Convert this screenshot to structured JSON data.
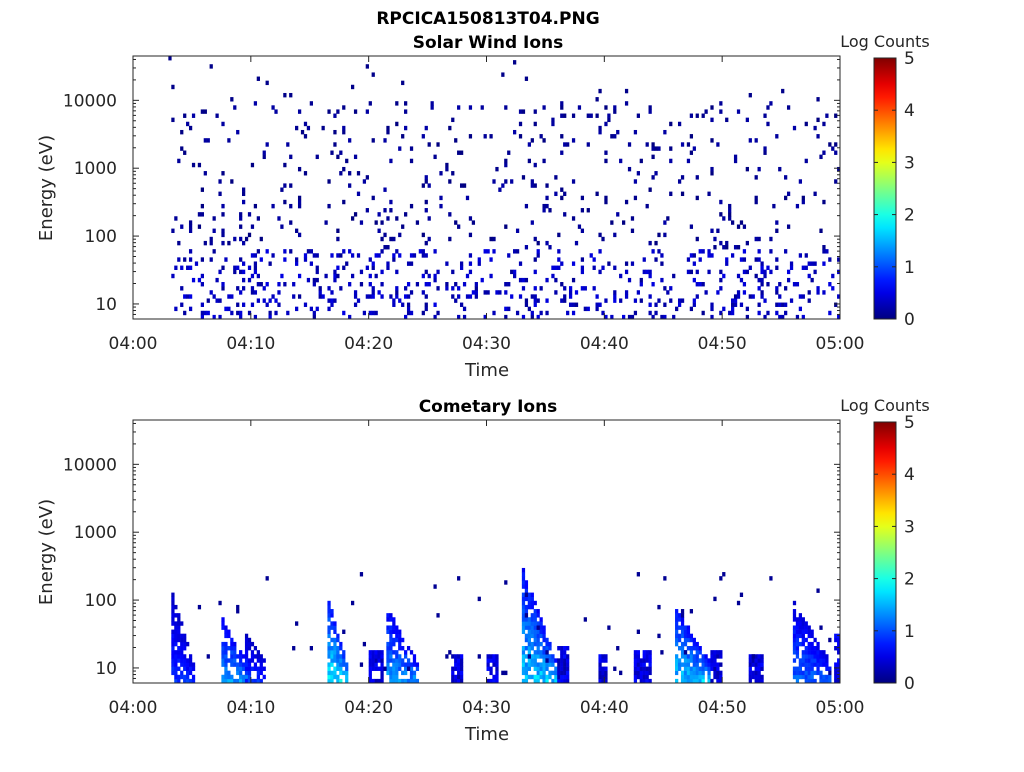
{
  "figure_title": "RPCICA150813T04.PNG",
  "colorbar": {
    "label": "Log Counts",
    "range": [
      0,
      5
    ],
    "ticks": [
      "0",
      "1",
      "2",
      "3",
      "4",
      "5"
    ],
    "colormap": "jet"
  },
  "chart_data": [
    {
      "type": "heatmap",
      "title": "Solar Wind Ions",
      "xlabel": "Time",
      "ylabel": "Energy (eV)",
      "xlim_minutes": [
        0,
        60
      ],
      "x_tick_labels": [
        "04:00",
        "04:10",
        "04:20",
        "04:30",
        "04:40",
        "04:50",
        "05:00"
      ],
      "yscale": "log",
      "ylim": [
        6,
        45000
      ],
      "y_tick_values": [
        10,
        100,
        1000,
        10000
      ],
      "y_tick_labels": [
        "10",
        "100",
        "1000",
        "10000"
      ],
      "data_start_minute": 2.8,
      "typical_log_counts": 0.1,
      "features": [
        {
          "description": "sparse single-count speckle",
          "energy_range_eV": [
            50,
            8000
          ],
          "log_counts": 0.0
        },
        {
          "description": "low-energy columns",
          "energy_range_eV": [
            7,
            35
          ],
          "log_counts": 0.2
        }
      ]
    },
    {
      "type": "heatmap",
      "title": "Cometary Ions",
      "xlabel": "Time",
      "ylabel": "Energy (eV)",
      "xlim_minutes": [
        0,
        60
      ],
      "x_tick_labels": [
        "04:00",
        "04:10",
        "04:20",
        "04:30",
        "04:40",
        "04:50",
        "05:00"
      ],
      "yscale": "log",
      "ylim": [
        6,
        45000
      ],
      "y_tick_values": [
        10,
        100,
        1000,
        10000
      ],
      "y_tick_labels": [
        "10",
        "100",
        "1000",
        "10000"
      ],
      "bursts": [
        {
          "start_min": 3.2,
          "end_min": 5.0,
          "emax": 120,
          "emin": 8,
          "peak": 1.0
        },
        {
          "start_min": 7.3,
          "end_min": 9.5,
          "emax": 60,
          "emin": 8,
          "peak": 1.6
        },
        {
          "start_min": 9.5,
          "end_min": 11.2,
          "emax": 30,
          "emin": 8,
          "peak": 1.0
        },
        {
          "start_min": 16.5,
          "end_min": 18.0,
          "emax": 90,
          "emin": 8,
          "peak": 2.1
        },
        {
          "start_min": 21.5,
          "end_min": 24.0,
          "emax": 70,
          "emin": 8,
          "peak": 1.6
        },
        {
          "start_min": 33.0,
          "end_min": 35.8,
          "emax": 260,
          "emin": 8,
          "peak": 1.9
        },
        {
          "start_min": 46.0,
          "end_min": 48.8,
          "emax": 70,
          "emin": 8,
          "peak": 1.9
        },
        {
          "start_min": 56.0,
          "end_min": 59.0,
          "emax": 90,
          "emin": 8,
          "peak": 1.3
        }
      ],
      "low_energy_columns": [
        {
          "start_min": 20.0,
          "end_min": 21.2,
          "emax": 18
        },
        {
          "start_min": 26.8,
          "end_min": 27.8,
          "emax": 15
        },
        {
          "start_min": 30.0,
          "end_min": 30.8,
          "emax": 14
        },
        {
          "start_min": 36.0,
          "end_min": 36.8,
          "emax": 20
        },
        {
          "start_min": 39.3,
          "end_min": 40.2,
          "emax": 15
        },
        {
          "start_min": 42.5,
          "end_min": 43.8,
          "emax": 18
        },
        {
          "start_min": 49.0,
          "end_min": 49.8,
          "emax": 16
        },
        {
          "start_min": 52.2,
          "end_min": 53.3,
          "emax": 15
        },
        {
          "start_min": 59.4,
          "end_min": 59.9,
          "emax": 30
        }
      ]
    }
  ]
}
